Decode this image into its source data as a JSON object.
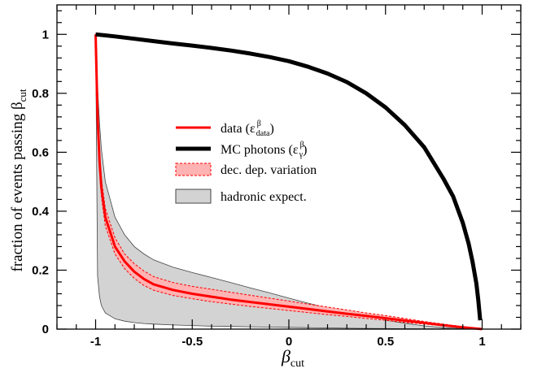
{
  "chart_data": {
    "type": "line",
    "xlabel": "β",
    "xlabel_sub": "cut",
    "ylabel": "fraction of events passing β",
    "ylabel_sub": "cut",
    "xlim": [
      -1.2,
      1.2
    ],
    "ylim": [
      0,
      1.1
    ],
    "x_ticks": [
      -1,
      -0.5,
      0,
      0.5,
      1
    ],
    "x_tick_labels": [
      "-1",
      "-0.5",
      "0",
      "0.5",
      "1"
    ],
    "y_ticks": [
      0,
      0.2,
      0.4,
      0.6,
      0.8,
      1
    ],
    "y_tick_labels": [
      "0",
      "0.2",
      "0.4",
      "0.6",
      "0.8",
      "1"
    ],
    "grid": false,
    "legend_position": "center",
    "legend": [
      {
        "label": "data (ε",
        "sup": "β",
        "sub": "data",
        "close": ")",
        "style": "red-line"
      },
      {
        "label": "MC photons (ε",
        "sup": "β",
        "sub": "γ",
        "close": ")",
        "style": "black-line"
      },
      {
        "label": "dec. dep. variation",
        "style": "red-band"
      },
      {
        "label": "hadronic expect.",
        "style": "gray-band"
      }
    ],
    "series": [
      {
        "name": "data",
        "color": "#ff0000",
        "x": [
          -1.0,
          -0.99,
          -0.98,
          -0.97,
          -0.95,
          -0.9,
          -0.85,
          -0.8,
          -0.75,
          -0.7,
          -0.6,
          -0.5,
          -0.4,
          -0.3,
          -0.2,
          -0.1,
          0.0,
          0.1,
          0.2,
          0.3,
          0.4,
          0.5,
          0.6,
          0.7,
          0.8,
          0.9,
          1.0
        ],
        "y": [
          1.0,
          0.72,
          0.57,
          0.48,
          0.38,
          0.28,
          0.23,
          0.195,
          0.17,
          0.152,
          0.133,
          0.12,
          0.11,
          0.1,
          0.092,
          0.084,
          0.076,
          0.068,
          0.06,
          0.052,
          0.045,
          0.037,
          0.029,
          0.021,
          0.013,
          0.006,
          0.0
        ]
      },
      {
        "name": "MC photons",
        "color": "#000000",
        "x": [
          -1.0,
          -0.9,
          -0.8,
          -0.7,
          -0.6,
          -0.5,
          -0.4,
          -0.3,
          -0.2,
          -0.1,
          0.0,
          0.1,
          0.2,
          0.3,
          0.4,
          0.5,
          0.6,
          0.7,
          0.8,
          0.85,
          0.9,
          0.93,
          0.95,
          0.97,
          0.98,
          0.99
        ],
        "y": [
          1.0,
          0.993,
          0.985,
          0.977,
          0.969,
          0.962,
          0.954,
          0.945,
          0.935,
          0.923,
          0.909,
          0.89,
          0.867,
          0.838,
          0.8,
          0.752,
          0.692,
          0.617,
          0.51,
          0.45,
          0.36,
          0.29,
          0.23,
          0.155,
          0.1,
          0.03
        ]
      }
    ],
    "bands": [
      {
        "name": "dec. dep. variation",
        "fill": "#ffb3b3",
        "edge": "#ff0000",
        "x": [
          -1.0,
          -0.99,
          -0.98,
          -0.97,
          -0.95,
          -0.9,
          -0.85,
          -0.8,
          -0.75,
          -0.7,
          -0.6,
          -0.5,
          -0.4,
          -0.3,
          -0.2,
          -0.1,
          0.0,
          0.1,
          0.2,
          0.3,
          0.4,
          0.5,
          0.6,
          0.7,
          0.8,
          0.9,
          1.0
        ],
        "upper": [
          1.0,
          0.74,
          0.6,
          0.51,
          0.41,
          0.31,
          0.255,
          0.222,
          0.197,
          0.178,
          0.158,
          0.145,
          0.135,
          0.125,
          0.115,
          0.105,
          0.095,
          0.085,
          0.075,
          0.065,
          0.055,
          0.046,
          0.036,
          0.026,
          0.017,
          0.008,
          0.0
        ],
        "lower": [
          1.0,
          0.7,
          0.54,
          0.45,
          0.35,
          0.255,
          0.205,
          0.172,
          0.148,
          0.132,
          0.114,
          0.103,
          0.093,
          0.085,
          0.077,
          0.07,
          0.063,
          0.056,
          0.049,
          0.043,
          0.036,
          0.03,
          0.023,
          0.017,
          0.011,
          0.005,
          0.0
        ]
      },
      {
        "name": "hadronic expect.",
        "fill": "#d3d3d3",
        "edge": "#444444",
        "x": [
          -1.0,
          -0.99,
          -0.98,
          -0.97,
          -0.95,
          -0.9,
          -0.85,
          -0.8,
          -0.75,
          -0.7,
          -0.6,
          -0.5,
          -0.4,
          -0.3,
          -0.2,
          -0.1,
          0.0,
          0.1,
          0.2,
          0.3,
          0.4,
          0.5,
          0.6,
          0.7,
          0.8,
          0.9,
          1.0
        ],
        "upper": [
          1.0,
          0.82,
          0.7,
          0.61,
          0.5,
          0.38,
          0.32,
          0.28,
          0.255,
          0.235,
          0.21,
          0.192,
          0.175,
          0.158,
          0.14,
          0.123,
          0.105,
          0.088,
          0.072,
          0.056,
          0.042,
          0.03,
          0.02,
          0.011,
          0.005,
          0.002,
          0.0
        ],
        "lower": [
          1.0,
          0.18,
          0.11,
          0.08,
          0.055,
          0.035,
          0.027,
          0.022,
          0.019,
          0.017,
          0.014,
          0.012,
          0.01,
          0.009,
          0.008,
          0.007,
          0.006,
          0.005,
          0.004,
          0.003,
          0.0025,
          0.002,
          0.0015,
          0.001,
          0.0007,
          0.0003,
          0.0
        ]
      }
    ]
  }
}
